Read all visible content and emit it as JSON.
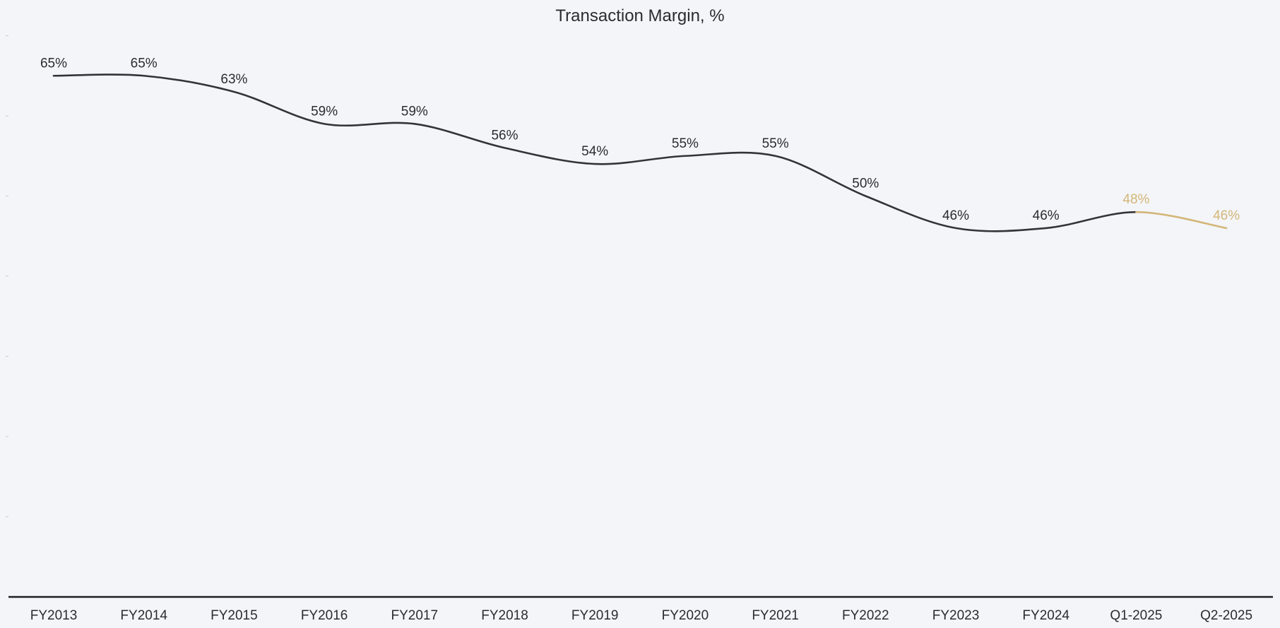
{
  "chart_data": {
    "type": "line",
    "title": "Transaction Margin, %",
    "xlabel": "",
    "ylabel": "",
    "categories": [
      "FY2013",
      "FY2014",
      "FY2015",
      "FY2016",
      "FY2017",
      "FY2018",
      "FY2019",
      "FY2020",
      "FY2021",
      "FY2022",
      "FY2023",
      "FY2024",
      "Q1-2025",
      "Q2-2025"
    ],
    "series": [
      {
        "values": [
          65,
          65,
          63,
          59,
          59,
          56,
          54,
          55,
          55,
          50,
          46,
          46,
          48,
          46
        ],
        "labels": [
          "65%",
          "65%",
          "63%",
          "59%",
          "59%",
          "56%",
          "54%",
          "55%",
          "55%",
          "50%",
          "46%",
          "46%",
          "48%",
          "46%"
        ],
        "solid_until_index": 12,
        "highlight_from_index": 12
      }
    ],
    "ylim": [
      0,
      70
    ],
    "grid": false,
    "legend": "none",
    "colors": {
      "background": "#f3f5f8",
      "line": "#333338",
      "highlight": "#d4b679",
      "text": "#2c2c30",
      "axis": "#1e1e22",
      "tick_mark": "#c9ccd2"
    }
  }
}
